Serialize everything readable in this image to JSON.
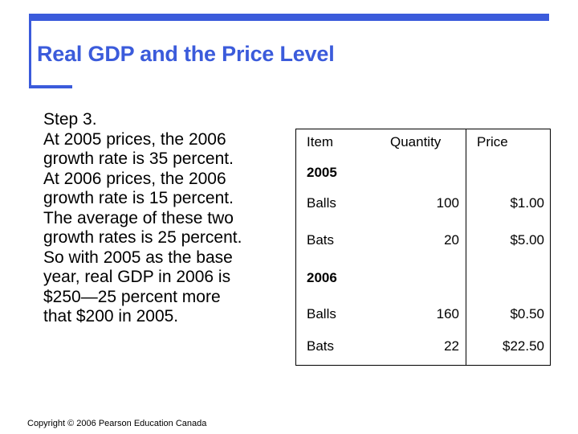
{
  "title": "Real GDP and the Price Level",
  "body_lines": [
    "Step 3.",
    "At 2005 prices, the 2006",
    "growth rate is 35 percent.",
    "At 2006 prices, the 2006",
    "growth rate is 15 percent.",
    "The average of these two",
    "growth rates is 25 percent.",
    "So with 2005 as the base",
    "year, real GDP in 2006 is",
    "$250—25 percent more",
    "that $200 in 2005."
  ],
  "table": {
    "headers": [
      "Item",
      "Quantity",
      "Price"
    ],
    "year_2005": "2005",
    "year_2006": "2006",
    "rows_2005": [
      {
        "item": "Balls",
        "quantity": "100",
        "price": "$1.00"
      },
      {
        "item": "Bats",
        "quantity": "20",
        "price": "$5.00"
      }
    ],
    "rows_2006": [
      {
        "item": "Balls",
        "quantity": "160",
        "price": "$0.50"
      },
      {
        "item": "Bats",
        "quantity": "22",
        "price": "$22.50"
      }
    ]
  },
  "copyright": "Copyright © 2006 Pearson Education Canada"
}
